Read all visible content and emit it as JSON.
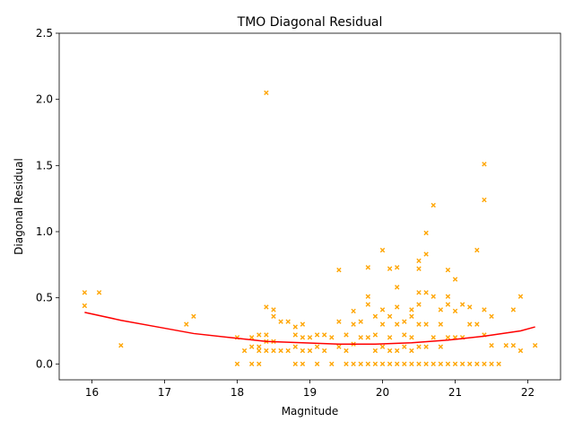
{
  "chart_data": {
    "type": "scatter",
    "title": "TMO Diagonal Residual",
    "xlabel": "Magnitude",
    "ylabel": "Diagonal Residual",
    "xlim": [
      15.55,
      22.45
    ],
    "ylim": [
      -0.12,
      2.5
    ],
    "xticks": [
      "16",
      "17",
      "18",
      "19",
      "20",
      "21",
      "22"
    ],
    "yticks": [
      "0.0",
      "0.5",
      "1.0",
      "1.5",
      "2.0",
      "2.5"
    ],
    "grid": false,
    "legend": "none",
    "marker_color": "#ffa500",
    "marker": "x",
    "fit_color": "#ff0000",
    "scatter": {
      "x": [
        15.9,
        15.9,
        16.1,
        16.4,
        17.3,
        17.4,
        18.0,
        18.0,
        18.1,
        18.2,
        18.2,
        18.2,
        18.3,
        18.3,
        18.3,
        18.3,
        18.4,
        18.4,
        18.4,
        18.4,
        18.4,
        18.5,
        18.5,
        18.5,
        18.5,
        18.6,
        18.6,
        18.7,
        18.7,
        18.8,
        18.8,
        18.8,
        18.8,
        18.9,
        18.9,
        18.9,
        18.9,
        19.0,
        19.0,
        19.1,
        19.1,
        19.1,
        19.2,
        19.2,
        19.3,
        19.3,
        19.4,
        19.4,
        19.4,
        19.5,
        19.5,
        19.5,
        19.6,
        19.6,
        19.6,
        19.6,
        19.7,
        19.7,
        19.7,
        19.8,
        19.8,
        19.8,
        19.8,
        19.8,
        19.9,
        19.9,
        19.9,
        19.9,
        20.0,
        20.0,
        20.0,
        20.0,
        20.0,
        20.1,
        20.1,
        20.1,
        20.1,
        20.1,
        20.2,
        20.2,
        20.2,
        20.2,
        20.2,
        20.2,
        20.3,
        20.3,
        20.3,
        20.3,
        20.4,
        20.4,
        20.4,
        20.4,
        20.4,
        20.5,
        20.5,
        20.5,
        20.5,
        20.5,
        20.5,
        20.5,
        20.6,
        20.6,
        20.6,
        20.6,
        20.6,
        20.6,
        20.7,
        20.7,
        20.7,
        20.7,
        20.8,
        20.8,
        20.8,
        20.8,
        20.9,
        20.9,
        20.9,
        20.9,
        20.9,
        21.0,
        21.0,
        21.0,
        21.0,
        21.1,
        21.1,
        21.1,
        21.2,
        21.2,
        21.2,
        21.3,
        21.3,
        21.3,
        21.4,
        21.4,
        21.4,
        21.4,
        21.4,
        21.5,
        21.5,
        21.5,
        21.6,
        21.7,
        21.8,
        21.8,
        21.9,
        21.9,
        22.1
      ],
      "y": [
        0.54,
        0.44,
        0.54,
        0.14,
        0.3,
        0.36,
        0.2,
        0.0,
        0.1,
        0.2,
        0.13,
        0.0,
        0.22,
        0.13,
        0.0,
        0.1,
        2.05,
        0.43,
        0.22,
        0.17,
        0.1,
        0.41,
        0.36,
        0.17,
        0.1,
        0.32,
        0.1,
        0.32,
        0.1,
        0.28,
        0.22,
        0.13,
        0.0,
        0.3,
        0.2,
        0.1,
        0.0,
        0.2,
        0.1,
        0.22,
        0.13,
        0.0,
        0.22,
        0.1,
        0.2,
        0.0,
        0.71,
        0.32,
        0.13,
        0.22,
        0.1,
        0.0,
        0.4,
        0.3,
        0.15,
        0.0,
        0.32,
        0.2,
        0.0,
        0.73,
        0.51,
        0.45,
        0.2,
        0.0,
        0.36,
        0.22,
        0.1,
        0.0,
        0.86,
        0.41,
        0.3,
        0.13,
        0.0,
        0.72,
        0.36,
        0.2,
        0.1,
        0.0,
        0.73,
        0.58,
        0.43,
        0.3,
        0.1,
        0.0,
        0.32,
        0.22,
        0.13,
        0.0,
        0.41,
        0.36,
        0.2,
        0.1,
        0.0,
        0.78,
        0.72,
        0.54,
        0.45,
        0.3,
        0.13,
        0.0,
        0.99,
        0.83,
        0.54,
        0.3,
        0.13,
        0.0,
        1.2,
        0.51,
        0.2,
        0.0,
        0.41,
        0.3,
        0.13,
        0.0,
        0.71,
        0.51,
        0.45,
        0.2,
        0.0,
        0.64,
        0.4,
        0.2,
        0.0,
        0.45,
        0.2,
        0.0,
        0.43,
        0.3,
        0.0,
        0.86,
        0.3,
        0.0,
        1.51,
        1.24,
        0.41,
        0.22,
        0.0,
        0.36,
        0.14,
        0.0,
        0.0,
        0.14,
        0.41,
        0.14,
        0.51,
        0.1,
        0.14
      ]
    },
    "fit": {
      "x": [
        15.9,
        16.4,
        16.9,
        17.4,
        17.9,
        18.4,
        18.9,
        19.4,
        19.9,
        20.4,
        20.9,
        21.4,
        21.9,
        22.1
      ],
      "y": [
        0.39,
        0.33,
        0.28,
        0.23,
        0.2,
        0.17,
        0.16,
        0.15,
        0.15,
        0.16,
        0.18,
        0.21,
        0.25,
        0.28
      ]
    }
  }
}
